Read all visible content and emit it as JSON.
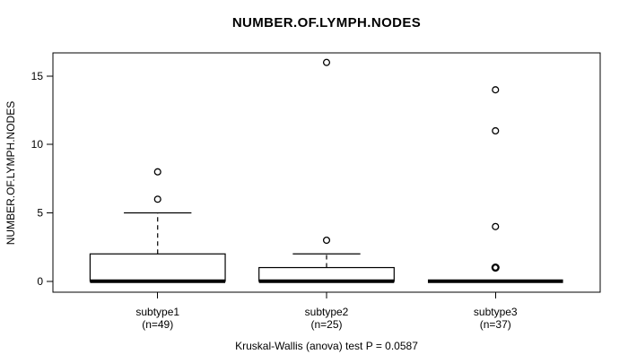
{
  "chart_data": {
    "type": "boxplot",
    "title": "NUMBER.OF.LYMPH.NODES",
    "ylabel": "NUMBER.OF.LYMPH.NODES",
    "xlabel": "",
    "caption": "Kruskal-Wallis (anova) test P = 0.0587",
    "yticks": [
      0,
      5,
      10,
      15
    ],
    "ylim": [
      -0.8,
      16.7
    ],
    "xlim": [
      0.38,
      3.62
    ],
    "grid": false,
    "colors": {
      "stroke": "#000000",
      "box_fill": "#ffffff",
      "background": "#ffffff"
    },
    "groups": [
      {
        "label": "subtype1",
        "sublabel": "(n=49)",
        "n": 49,
        "position": 1,
        "q1": 0,
        "median": 0,
        "q3": 2,
        "whisker_low": 0,
        "whisker_high": 5,
        "outliers": [
          6,
          8
        ],
        "bold_outliers": []
      },
      {
        "label": "subtype2",
        "sublabel": "(n=25)",
        "n": 25,
        "position": 2,
        "q1": 0,
        "median": 0,
        "q3": 1,
        "whisker_low": 0,
        "whisker_high": 2,
        "outliers": [
          3,
          16
        ],
        "bold_outliers": []
      },
      {
        "label": "subtype3",
        "sublabel": "(n=37)",
        "n": 37,
        "position": 3,
        "q1": 0,
        "median": 0,
        "q3": 0,
        "whisker_low": 0,
        "whisker_high": 0,
        "outliers": [
          1,
          4,
          11,
          14
        ],
        "bold_outliers": [
          1
        ]
      }
    ]
  }
}
